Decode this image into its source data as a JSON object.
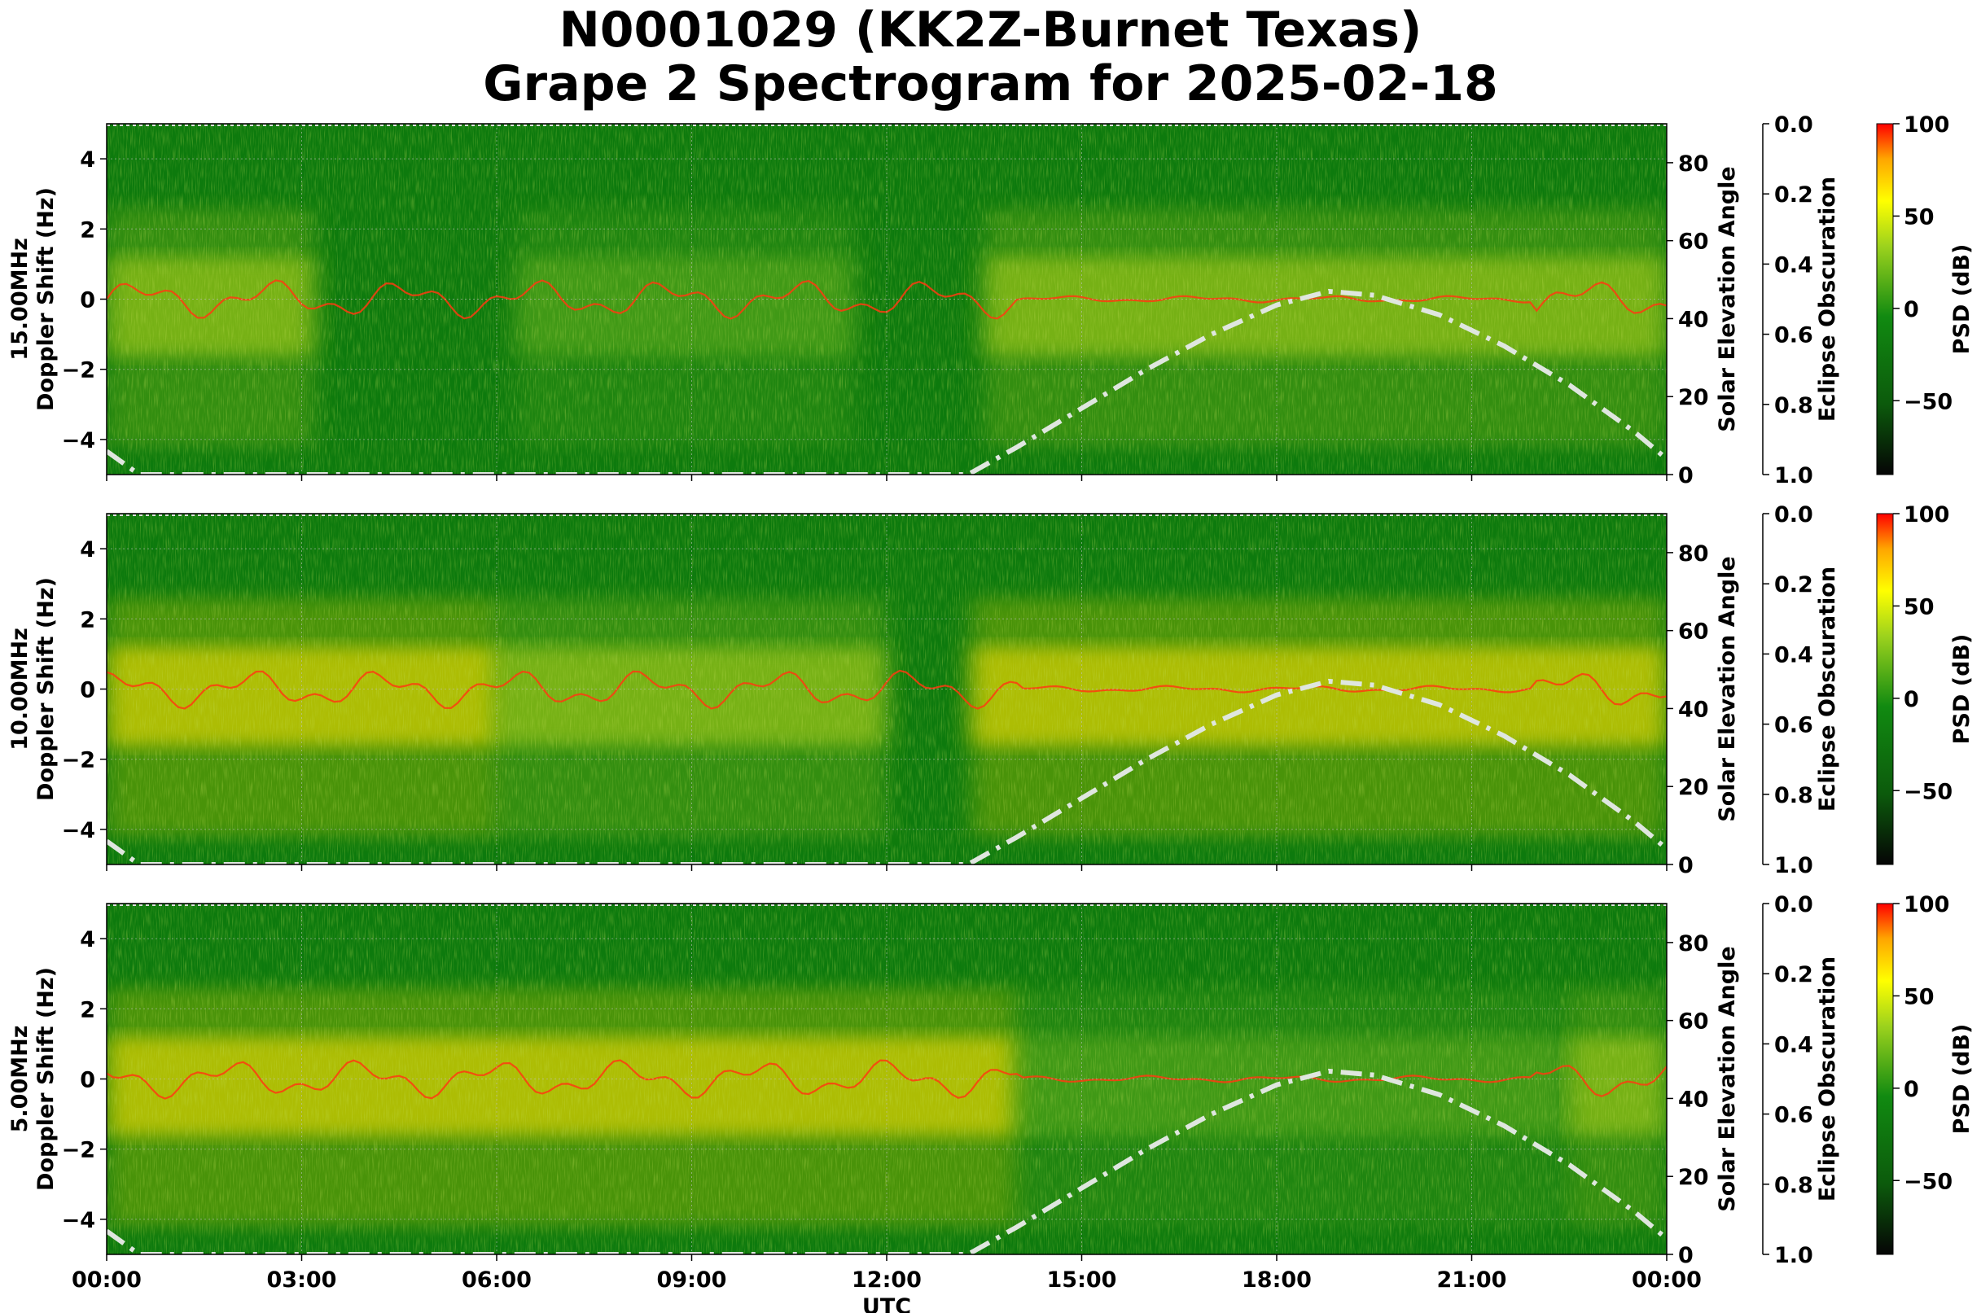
{
  "chart_data": {
    "type": "heatmap",
    "title_line1": "N0001029 (KK2Z-Burnet Texas)",
    "title_line2": "Grape 2 Spectrogram for 2025-02-18",
    "xlabel": "UTC",
    "x_ticks": [
      "00:00",
      "03:00",
      "06:00",
      "09:00",
      "12:00",
      "15:00",
      "18:00",
      "21:00",
      "00:00"
    ],
    "x_range_hours": [
      0,
      24
    ],
    "y_range_hz": [
      -5,
      5
    ],
    "y_ticks": [
      "4",
      "2",
      "0",
      "−2",
      "−4"
    ],
    "y_tick_values": [
      4,
      2,
      0,
      -2,
      -4
    ],
    "right_axis_label": "Solar Elevation Angle",
    "right_ticks": [
      "80",
      "60",
      "40",
      "20",
      "0"
    ],
    "right_tick_values": [
      80,
      60,
      40,
      20,
      0
    ],
    "right_range": [
      0,
      90
    ],
    "eclipse_label": "Eclipse Obscuration",
    "eclipse_ticks": [
      "0.0",
      "0.2",
      "0.4",
      "0.6",
      "0.8",
      "1.0"
    ],
    "colorbar_label": "PSD (dB)",
    "colorbar_ticks": [
      "100",
      "50",
      "0",
      "−50"
    ],
    "colorbar_tick_values": [
      100,
      50,
      0,
      -50
    ],
    "colorbar_range": [
      -90,
      100
    ],
    "grid": true,
    "panels": [
      {
        "ylabel": "15.00MHz\nDoppler Shift (Hz)",
        "ylabel_line1": "15.00MHz",
        "ylabel_line2": "Doppler Shift (Hz)",
        "signal_regions": [
          {
            "x": [
              0,
              3.2
            ],
            "intensity": "medium"
          },
          {
            "x": [
              6.3,
              11.5
            ],
            "intensity": "low"
          },
          {
            "x": [
              13.5,
              24
            ],
            "intensity": "medium"
          }
        ]
      },
      {
        "ylabel_line1": "10.00MHz",
        "ylabel_line2": "Doppler Shift (Hz)",
        "signal_regions": [
          {
            "x": [
              0,
              6
            ],
            "intensity": "high"
          },
          {
            "x": [
              6,
              12
            ],
            "intensity": "medium"
          },
          {
            "x": [
              13.3,
              24
            ],
            "intensity": "high"
          }
        ]
      },
      {
        "ylabel_line1": "5.00MHz",
        "ylabel_line2": "Doppler Shift (Hz)",
        "signal_regions": [
          {
            "x": [
              0,
              14
            ],
            "intensity": "high"
          },
          {
            "x": [
              14,
              22.5
            ],
            "intensity": "low"
          },
          {
            "x": [
              22.5,
              24
            ],
            "intensity": "medium"
          }
        ]
      }
    ],
    "solar_elevation_curve": [
      [
        0.0,
        6
      ],
      [
        0.5,
        0
      ],
      [
        13.25,
        0
      ],
      [
        14,
        7
      ],
      [
        15,
        17
      ],
      [
        16,
        27
      ],
      [
        17,
        36
      ],
      [
        18,
        43.5
      ],
      [
        18.8,
        47
      ],
      [
        19.5,
        46
      ],
      [
        20.5,
        41
      ],
      [
        21.5,
        33
      ],
      [
        22.5,
        23
      ],
      [
        23.5,
        11
      ],
      [
        24,
        4
      ]
    ],
    "colors": {
      "background": "#0d7a0d",
      "signal_medium": "#c8dc1e",
      "signal_high": "#ffe000",
      "trace": "#ff3a10",
      "solar_curve": "#dfe6df",
      "colormap": [
        "#050505",
        "#0c6a0c",
        "#138a13",
        "#9cd21d",
        "#ffff00",
        "#ffa500",
        "#ff0000"
      ]
    }
  }
}
